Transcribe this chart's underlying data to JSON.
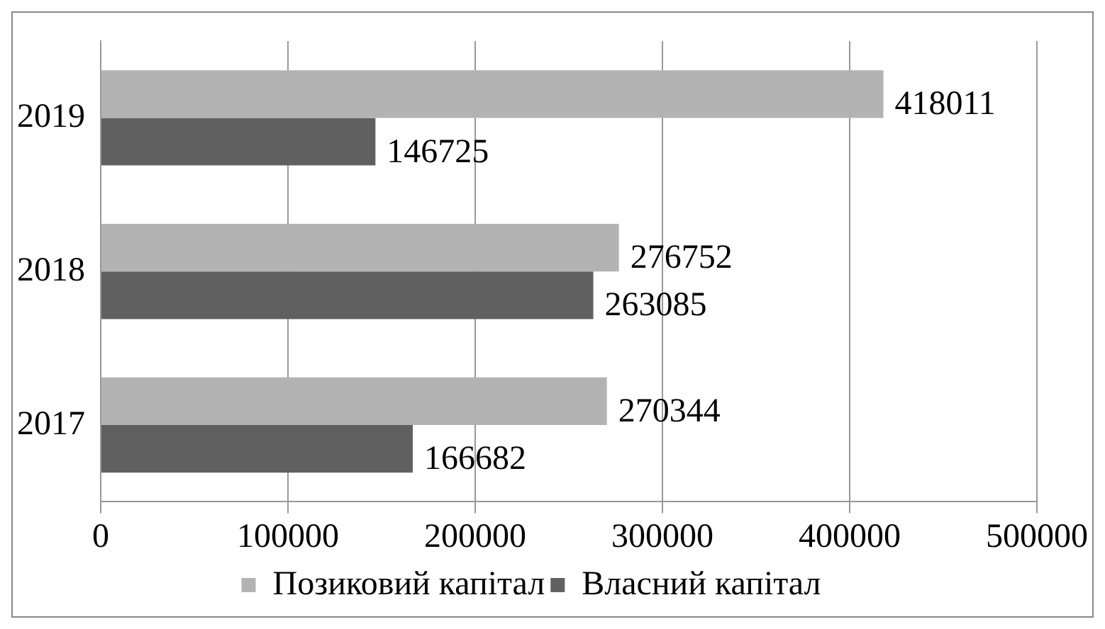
{
  "chart_data": {
    "type": "bar",
    "orientation": "horizontal",
    "categories": [
      "2019",
      "2018",
      "2017"
    ],
    "series": [
      {
        "name": "Позиковий капітал",
        "color": "#b3b3b3",
        "values": [
          418011,
          276752,
          270344
        ]
      },
      {
        "name": "Власний капітал",
        "color": "#606060",
        "values": [
          146725,
          263085,
          166682
        ]
      }
    ],
    "xlim": [
      0,
      500000
    ],
    "xticks": [
      0,
      100000,
      200000,
      300000,
      400000,
      500000
    ],
    "grid": "x",
    "legend": "bottom",
    "data_labels": true
  }
}
